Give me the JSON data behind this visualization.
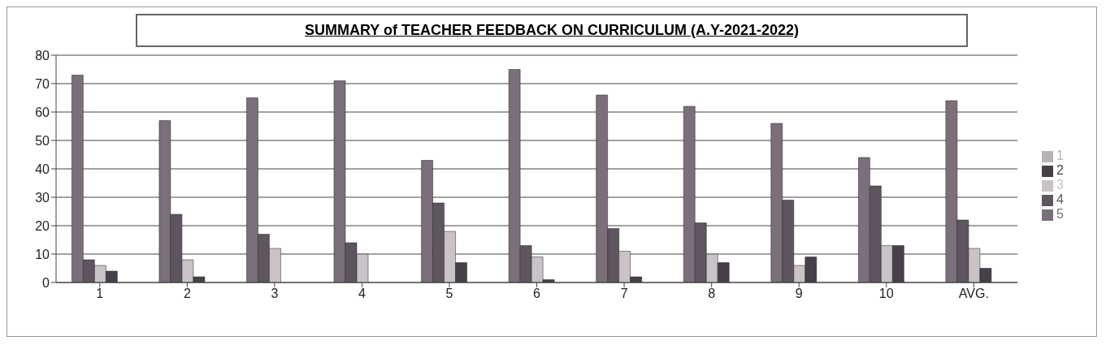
{
  "chart_data": {
    "type": "bar",
    "title": "SUMMARY of TEACHER FEEDBACK ON CURRICULUM (A.Y-2021-2022)",
    "categories": [
      "1",
      "2",
      "3",
      "4",
      "5",
      "6",
      "7",
      "8",
      "9",
      "10",
      "AVG."
    ],
    "series": [
      {
        "name": "5",
        "color": "#7a6f7a",
        "values": [
          73,
          57,
          65,
          71,
          43,
          75,
          66,
          62,
          56,
          44,
          64
        ]
      },
      {
        "name": "4",
        "color": "#5f5560",
        "values": [
          8,
          24,
          17,
          14,
          28,
          13,
          19,
          21,
          29,
          34,
          22
        ]
      },
      {
        "name": "3",
        "color": "#c9c2c6",
        "values": [
          6,
          8,
          12,
          10,
          18,
          9,
          11,
          10,
          6,
          13,
          12
        ]
      },
      {
        "name": "2",
        "color": "#47404a",
        "values": [
          4,
          2,
          0,
          0,
          7,
          1,
          2,
          7,
          9,
          13,
          5
        ]
      },
      {
        "name": "1",
        "color": "#b9b2b6",
        "values": [
          0,
          0,
          0,
          0,
          0,
          0,
          0,
          0,
          0,
          0,
          0
        ]
      }
    ],
    "ylim": [
      0,
      80
    ],
    "yticks": [
      0,
      10,
      20,
      30,
      40,
      50,
      60,
      70,
      80
    ],
    "grid": "y",
    "legend": "right"
  }
}
